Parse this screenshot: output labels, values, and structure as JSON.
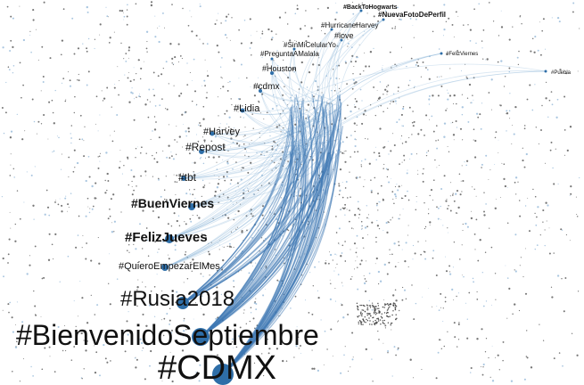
{
  "nodes": [
    {
      "label": "#BackToHogwarts"
    },
    {
      "label": "#NuevaFotoDePerfil"
    },
    {
      "label": "#HurricaneHarvey"
    },
    {
      "label": "#love"
    },
    {
      "label": "#SinMiCelularYo"
    },
    {
      "label": "#PreguntaAMalala"
    },
    {
      "label": "#Houston"
    },
    {
      "label": "#cdmx"
    },
    {
      "label": "#Lidia"
    },
    {
      "label": "#Harvey"
    },
    {
      "label": "#Repost"
    },
    {
      "label": "#tbt"
    },
    {
      "label": "#BuenViernes"
    },
    {
      "label": "#FelizJueves"
    },
    {
      "label": "#QuieroEmpezarElMes"
    },
    {
      "label": "#Rusia2018"
    },
    {
      "label": "#BienvenidoSeptiembre"
    },
    {
      "label": "#CDMX"
    },
    {
      "label": "#FelizViernes"
    },
    {
      "label": "#Puebla"
    }
  ]
}
